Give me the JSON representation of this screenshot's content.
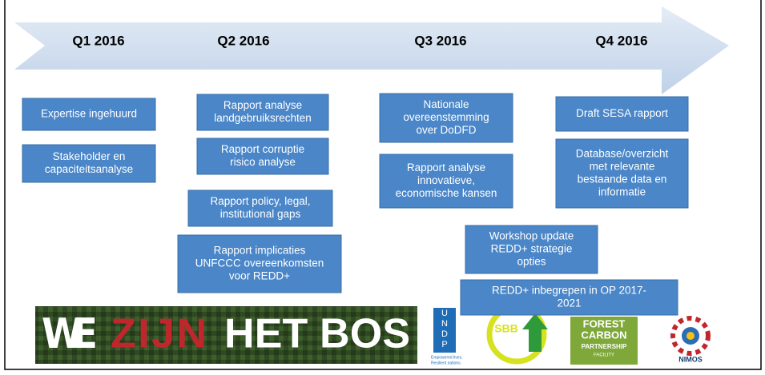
{
  "timeline": {
    "quarters": [
      "Q1 2016",
      "Q2 2016",
      "Q3 2016",
      "Q4 2016"
    ]
  },
  "boxes": [
    {
      "lines": [
        "Expertise ingehuurd"
      ]
    },
    {
      "lines": [
        "Stakeholder en",
        "capaciteitsanalyse"
      ]
    },
    {
      "lines": [
        "Rapport analyse",
        "landgebruiksrechten"
      ]
    },
    {
      "lines": [
        "Rapport corruptie",
        "risico analyse"
      ]
    },
    {
      "lines": [
        "Rapport policy, legal,",
        "institutional gaps"
      ]
    },
    {
      "lines": [
        "Rapport implicaties",
        "UNFCCC overeenkomsten",
        "voor REDD+"
      ]
    },
    {
      "lines": [
        "Nationale",
        "overeenstemming",
        "over DoDFD"
      ]
    },
    {
      "lines": [
        "Rapport analyse",
        "innovatieve,",
        "economische kansen"
      ]
    },
    {
      "lines": [
        "Draft SESA rapport"
      ]
    },
    {
      "lines": [
        "Database/overzicht",
        "met relevante",
        "bestaande data en",
        "informatie"
      ]
    },
    {
      "lines": [
        "Workshop update",
        "REDD+ strategie",
        "opties"
      ]
    },
    {
      "lines": [
        "REDD+ inbegrepen in OP 2017-",
        "2021"
      ]
    }
  ],
  "logos": {
    "banner": [
      "WE",
      "ZIJN",
      "HET BOS"
    ],
    "undp": {
      "letters": [
        "U",
        "N",
        "D",
        "P"
      ],
      "tagline": [
        "Empowered lives.",
        "Resilient nations."
      ]
    },
    "sbb": "SBB",
    "fcpf": [
      "FOREST",
      "CARBON",
      "PARTNERSHIP",
      "FACILITY"
    ],
    "nimos": "NIMOS"
  }
}
